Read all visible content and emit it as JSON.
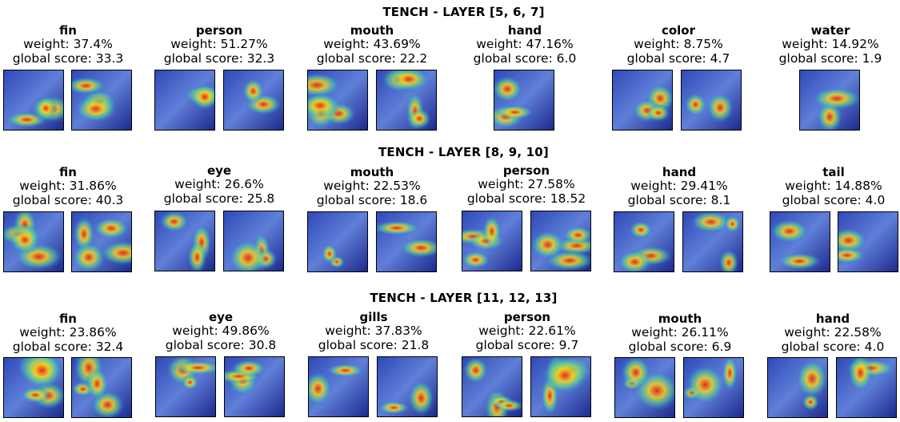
{
  "figure": {
    "rows": [
      {
        "title": "TENCH - LAYER [5, 6, 7]",
        "concepts": [
          {
            "name": "fin",
            "weight": "weight: 37.4%",
            "score": "global score: 33.3",
            "images": 2
          },
          {
            "name": "person",
            "weight": "weight: 51.27%",
            "score": "global score: 32.3",
            "images": 2
          },
          {
            "name": "mouth",
            "weight": "weight: 43.69%",
            "score": "global score: 22.2",
            "images": 2
          },
          {
            "name": "hand",
            "weight": "weight: 47.16%",
            "score": "global score: 6.0",
            "images": 1
          },
          {
            "name": "color",
            "weight": "weight: 8.75%",
            "score": "global score: 4.7",
            "images": 2
          },
          {
            "name": "water",
            "weight": "weight: 14.92%",
            "score": "global score: 1.9",
            "images": 1
          }
        ]
      },
      {
        "title": "TENCH - LAYER [8, 9, 10]",
        "concepts": [
          {
            "name": "fin",
            "weight": "weight: 31.86%",
            "score": "global score: 40.3",
            "images": 2
          },
          {
            "name": "eye",
            "weight": "weight: 26.6%",
            "score": "global score: 25.8",
            "images": 2
          },
          {
            "name": "mouth",
            "weight": "weight: 22.53%",
            "score": "global score: 18.6",
            "images": 2
          },
          {
            "name": "person",
            "weight": "weight: 27.58%",
            "score": "global score: 18.52",
            "images": 2
          },
          {
            "name": "hand",
            "weight": "weight: 29.41%",
            "score": "global score: 8.1",
            "images": 2
          },
          {
            "name": "tail",
            "weight": "weight: 14.88%",
            "score": "global score: 4.0",
            "images": 2
          }
        ]
      },
      {
        "title": "TENCH - LAYER [11, 12, 13]",
        "concepts": [
          {
            "name": "fin",
            "weight": "weight: 23.86%",
            "score": "global score: 32.4",
            "images": 2
          },
          {
            "name": "eye",
            "weight": "weight: 49.86%",
            "score": "global score: 30.8",
            "images": 2
          },
          {
            "name": "gills",
            "weight": "weight: 37.83%",
            "score": "global score: 21.8",
            "images": 2
          },
          {
            "name": "person",
            "weight": "weight: 22.61%",
            "score": "global score: 9.7",
            "images": 2
          },
          {
            "name": "mouth",
            "weight": "weight: 26.11%",
            "score": "global score: 6.9",
            "images": 2
          },
          {
            "name": "hand",
            "weight": "weight: 22.58%",
            "score": "global score: 4.0",
            "images": 2
          }
        ]
      }
    ]
  }
}
